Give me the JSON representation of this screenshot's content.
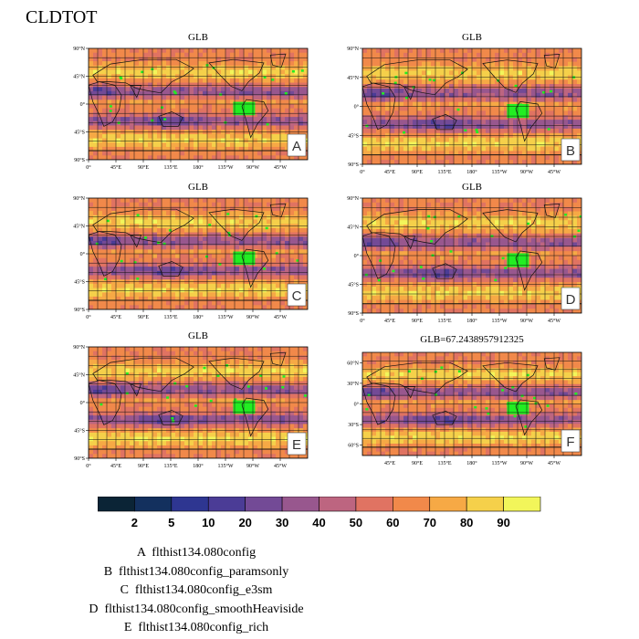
{
  "title": "CLDTOT",
  "chart_data": {
    "type": "heatmap",
    "variable": "CLDTOT",
    "colorbar": {
      "levels": [
        2,
        5,
        10,
        20,
        30,
        40,
        50,
        60,
        70,
        80,
        90
      ],
      "colors": [
        "#0b2436",
        "#13305e",
        "#2e3691",
        "#4b3c96",
        "#734a96",
        "#98578e",
        "#bd6580",
        "#e07362",
        "#f1894a",
        "#f6a945",
        "#f5d04a",
        "#f2f55a"
      ]
    },
    "panels": [
      {
        "id": "A",
        "title": "GLB",
        "lat_ticks": [
          "90°N",
          "45°N",
          "0°",
          "45°S",
          "90°S"
        ],
        "lon_ticks": [
          "0°",
          "45°E",
          "90°E",
          "135°E",
          "180°",
          "135°W",
          "90°W",
          "45°W"
        ]
      },
      {
        "id": "B",
        "title": "GLB",
        "lat_ticks": [
          "90°N",
          "45°N",
          "0°",
          "45°S",
          "90°S"
        ],
        "lon_ticks": [
          "0°",
          "45°E",
          "90°E",
          "135°E",
          "180°",
          "135°W",
          "90°W",
          "45°W"
        ]
      },
      {
        "id": "C",
        "title": "GLB",
        "lat_ticks": [
          "90°N",
          "45°N",
          "0°",
          "45°S",
          "90°S"
        ],
        "lon_ticks": [
          "0°",
          "45°E",
          "90°E",
          "135°E",
          "180°",
          "135°W",
          "90°W",
          "45°W"
        ]
      },
      {
        "id": "D",
        "title": "GLB",
        "lat_ticks": [
          "90°N",
          "45°N",
          "0°",
          "45°S",
          "90°S"
        ],
        "lon_ticks": [
          "0°",
          "45°E",
          "90°E",
          "135°E",
          "180°",
          "135°W",
          "90°W",
          "45°W"
        ]
      },
      {
        "id": "E",
        "title": "GLB",
        "lat_ticks": [
          "90°N",
          "45°N",
          "0°",
          "45°S",
          "90°S"
        ],
        "lon_ticks": [
          "0°",
          "45°E",
          "90°E",
          "135°E",
          "180°",
          "135°W",
          "90°W",
          "45°W"
        ]
      },
      {
        "id": "F",
        "title": "GLB=67.2438957912325",
        "lat_ticks": [
          "60°N",
          "30°N",
          "0°",
          "30°S",
          "60°S"
        ],
        "lon_ticks": [
          "45°E",
          "90°E",
          "135°E",
          "180°",
          "135°W",
          "90°W",
          "45°W"
        ]
      }
    ],
    "legend": [
      {
        "id": "A",
        "name": "flthist134.080config"
      },
      {
        "id": "B",
        "name": "flthist134.080config_paramsonly"
      },
      {
        "id": "C",
        "name": "flthist134.080config_e3sm"
      },
      {
        "id": "D",
        "name": "flthist134.080config_smoothHeaviside"
      },
      {
        "id": "E",
        "name": "flthist134.080config_rich"
      }
    ]
  }
}
